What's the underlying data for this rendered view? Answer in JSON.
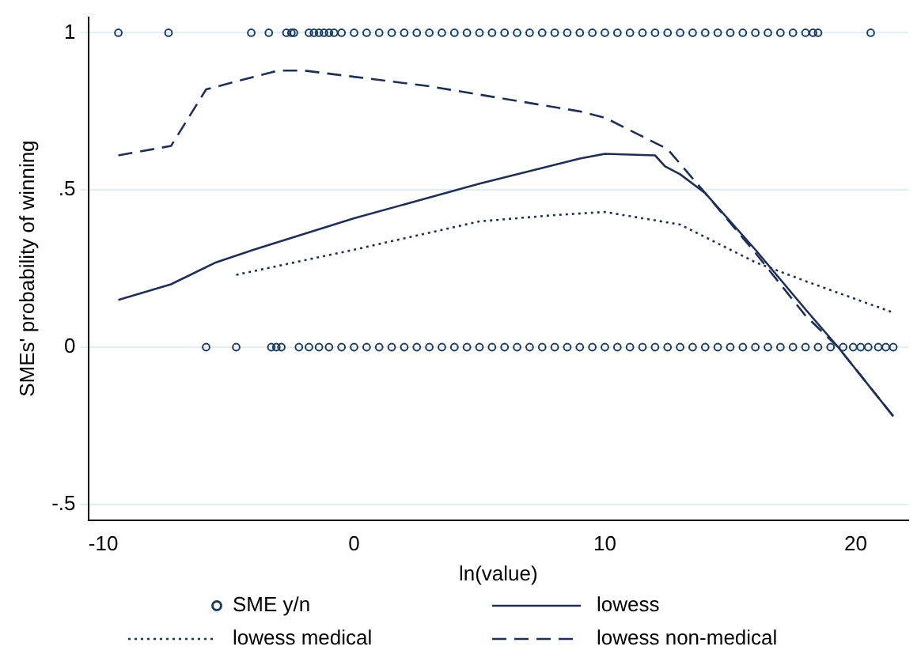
{
  "chart_data": {
    "type": "scatter",
    "xlabel": "ln(value)",
    "ylabel": "SMEs' probability of winning",
    "xlim": [
      -10.6,
      22.1
    ],
    "ylim": [
      -0.55,
      1.05
    ],
    "xticks": [
      -10,
      0,
      10,
      20
    ],
    "yticks": [
      {
        "value": -0.5,
        "label": "-.5"
      },
      0,
      {
        "value": 0.5,
        "label": ".5"
      },
      1
    ],
    "grid": "y",
    "legend": "bottom",
    "series": [
      {
        "name": "SME y/n",
        "type": "scatter",
        "marker": "circle",
        "color": "#1a3d5f",
        "x": [
          -9.4,
          -7.4,
          -4.1,
          -3.4,
          -2.7,
          -2.5,
          -2.4,
          -1.8,
          -1.6,
          -1.4,
          -1.2,
          -1,
          -0.8,
          -0.5,
          0,
          0.5,
          1,
          1.5,
          2,
          2.5,
          3,
          3.5,
          4,
          4.5,
          5,
          5.5,
          6,
          6.5,
          7,
          7.5,
          8,
          8.5,
          9,
          9.5,
          10,
          10.5,
          11,
          11.5,
          12,
          12.5,
          13,
          13.5,
          14,
          14.5,
          15,
          15.5,
          16,
          16.5,
          17,
          17.5,
          18,
          18.3,
          18.5,
          20.6,
          -5.9,
          -4.7,
          -3.3,
          -3.1,
          -2.9,
          -2.2,
          -1.8,
          -1.4,
          -1,
          -0.5,
          0,
          0.5,
          1,
          1.5,
          2,
          2.5,
          3,
          3.5,
          4,
          4.5,
          5,
          5.5,
          6,
          6.5,
          7,
          7.5,
          8,
          8.5,
          9,
          9.5,
          10,
          10.5,
          11,
          11.5,
          12,
          12.5,
          13,
          13.5,
          14,
          14.5,
          15,
          15.5,
          16,
          16.5,
          17,
          17.5,
          18,
          18.5,
          19,
          19.5,
          19.9,
          20.2,
          20.5,
          20.9,
          21.2,
          21.5
        ],
        "values": [
          1,
          1,
          1,
          1,
          1,
          1,
          1,
          1,
          1,
          1,
          1,
          1,
          1,
          1,
          1,
          1,
          1,
          1,
          1,
          1,
          1,
          1,
          1,
          1,
          1,
          1,
          1,
          1,
          1,
          1,
          1,
          1,
          1,
          1,
          1,
          1,
          1,
          1,
          1,
          1,
          1,
          1,
          1,
          1,
          1,
          1,
          1,
          1,
          1,
          1,
          1,
          1,
          1,
          1,
          0,
          0,
          0,
          0,
          0,
          0,
          0,
          0,
          0,
          0,
          0,
          0,
          0,
          0,
          0,
          0,
          0,
          0,
          0,
          0,
          0,
          0,
          0,
          0,
          0,
          0,
          0,
          0,
          0,
          0,
          0,
          0,
          0,
          0,
          0,
          0,
          0,
          0,
          0,
          0,
          0,
          0,
          0,
          0,
          0,
          0,
          0,
          0,
          0,
          0,
          0,
          0,
          0,
          0,
          0,
          0
        ]
      },
      {
        "name": "lowess",
        "type": "line",
        "line_style": "solid",
        "color": "#1f2f55",
        "x": [
          -9.4,
          -7.3,
          -5.5,
          -4,
          0,
          5,
          9,
          10,
          12,
          12.4,
          13,
          14,
          16,
          18,
          19.3,
          21.5
        ],
        "values": [
          0.15,
          0.2,
          0.27,
          0.31,
          0.41,
          0.52,
          0.6,
          0.615,
          0.61,
          0.575,
          0.55,
          0.49,
          0.31,
          0.12,
          0,
          -0.22
        ]
      },
      {
        "name": "lowess medical",
        "type": "line",
        "line_style": "dotted",
        "color": "#1f2f55",
        "x": [
          -4.7,
          0,
          5,
          8,
          10,
          11.5,
          13,
          14.5,
          16,
          18,
          21.5
        ],
        "values": [
          0.23,
          0.31,
          0.4,
          0.42,
          0.43,
          0.41,
          0.39,
          0.33,
          0.27,
          0.21,
          0.11
        ]
      },
      {
        "name": "lowess non-medical",
        "type": "line",
        "line_style": "dashed",
        "color": "#1f2f55",
        "x": [
          -9.4,
          -7.3,
          -5.9,
          -4,
          -3,
          -2,
          0,
          3,
          6,
          9,
          10,
          12,
          12.5,
          14,
          16,
          18,
          19.3,
          21.5
        ],
        "values": [
          0.61,
          0.64,
          0.82,
          0.86,
          0.88,
          0.88,
          0.86,
          0.83,
          0.79,
          0.75,
          0.73,
          0.65,
          0.63,
          0.49,
          0.3,
          0.1,
          0,
          -0.22
        ]
      }
    ]
  }
}
